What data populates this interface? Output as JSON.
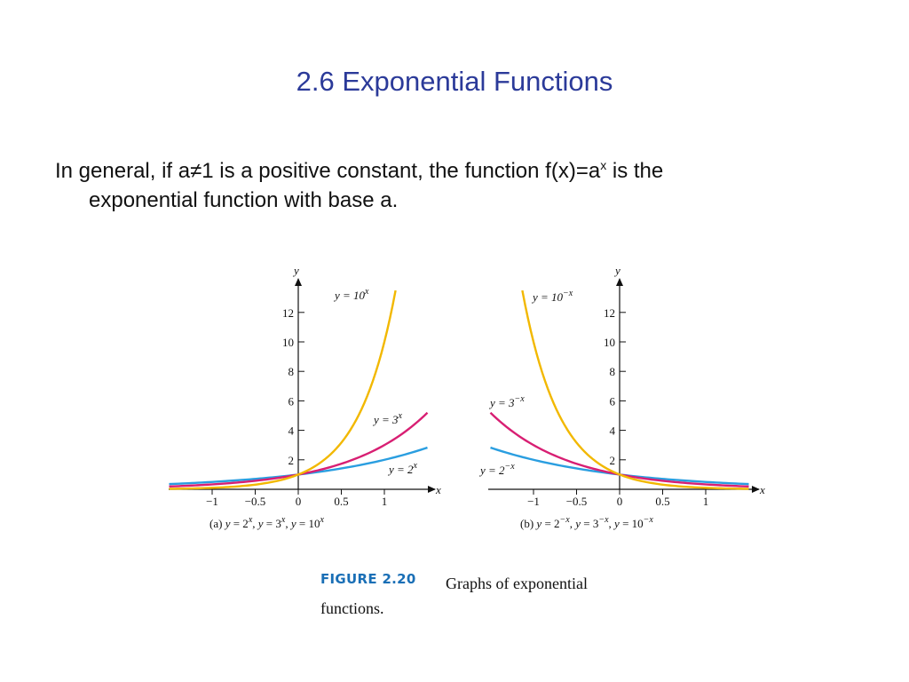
{
  "slide": {
    "title": "2.6 Exponential Functions",
    "body_line1_pre": "In general, if a≠1 is a positive constant, the function f(x)=a",
    "body_sup": "x",
    "body_line1_post": " is the",
    "body_line2": "exponential function with base a."
  },
  "figure": {
    "label": "FIGURE 2.20",
    "caption": "Graphs of exponential functions."
  },
  "chart_data": [
    {
      "type": "line",
      "panel_caption": "(a)  y = 2^x, y = 3^x, y = 10^x",
      "xlabel": "x",
      "ylabel": "y",
      "xlim": [
        -1.5,
        1.5
      ],
      "ylim": [
        0,
        13.5
      ],
      "x_ticks": [
        -1,
        -0.5,
        0,
        0.5,
        1
      ],
      "x_tick_labels": [
        "−1",
        "−0.5",
        "0",
        "0.5",
        "1"
      ],
      "y_ticks": [
        2,
        4,
        6,
        8,
        10,
        12
      ],
      "y_tick_labels": [
        "2",
        "4",
        "6",
        "8",
        "10",
        "12"
      ],
      "series": [
        {
          "name": "y = 2^x",
          "base": 2,
          "sign": 1,
          "color": "#2a9ee0",
          "x_range": [
            -1.5,
            1.5
          ]
        },
        {
          "name": "y = 3^x",
          "base": 3,
          "sign": 1,
          "color": "#d81f73",
          "x_range": [
            -1.5,
            1.5
          ]
        },
        {
          "name": "y = 10^x",
          "base": 10,
          "sign": 1,
          "color": "#f2b800",
          "x_range": [
            -1.5,
            1.13
          ]
        }
      ]
    },
    {
      "type": "line",
      "panel_caption": "(b)  y = 2^−x, y = 3^−x, y = 10^−x",
      "xlabel": "x",
      "ylabel": "y",
      "xlim": [
        -1.5,
        1.5
      ],
      "ylim": [
        0,
        13.5
      ],
      "x_ticks": [
        -1,
        -0.5,
        0,
        0.5,
        1
      ],
      "x_tick_labels": [
        "−1",
        "−0.5",
        "0",
        "0.5",
        "1"
      ],
      "y_ticks": [
        2,
        4,
        6,
        8,
        10,
        12
      ],
      "y_tick_labels": [
        "2",
        "4",
        "6",
        "8",
        "10",
        "12"
      ],
      "series": [
        {
          "name": "y = 2^−x",
          "base": 2,
          "sign": -1,
          "color": "#2a9ee0",
          "x_range": [
            -1.5,
            1.5
          ]
        },
        {
          "name": "y = 3^−x",
          "base": 3,
          "sign": -1,
          "color": "#d81f73",
          "x_range": [
            -1.5,
            1.5
          ]
        },
        {
          "name": "y = 10^−x",
          "base": 10,
          "sign": -1,
          "color": "#f2b800",
          "x_range": [
            -1.13,
            1.5
          ]
        }
      ]
    }
  ]
}
